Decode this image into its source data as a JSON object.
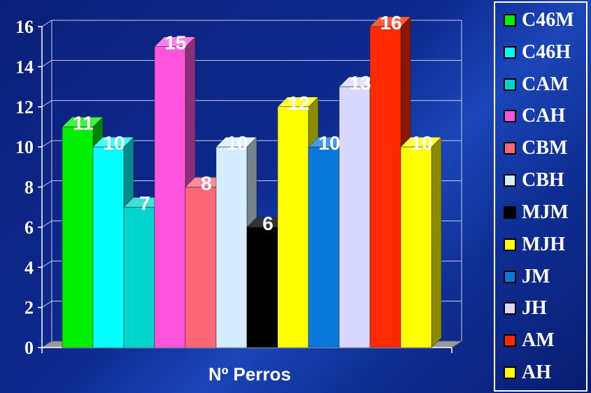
{
  "chart_data": {
    "type": "bar",
    "categories": [
      "C46M",
      "C46H",
      "CAM",
      "CAH",
      "CBM",
      "CBH",
      "MJM",
      "MJH",
      "JM",
      "JH",
      "AM",
      "AH"
    ],
    "values": [
      11,
      10,
      7,
      15,
      8,
      10,
      6,
      12,
      10,
      13,
      16,
      10
    ],
    "colors": [
      "#00ee00",
      "#00ffff",
      "#00d4cc",
      "#ff55dd",
      "#ff6677",
      "#d4eeff",
      "#000000",
      "#ffff00",
      "#0a78d8",
      "#d8d8ff",
      "#ff2a00",
      "#ffff00"
    ],
    "xlabel": "Nº Perros",
    "ylabel": "",
    "ylim": [
      0,
      16
    ],
    "yticks": [
      "0",
      "2",
      "4",
      "6",
      "8",
      "10",
      "12",
      "14",
      "16"
    ],
    "grid": true,
    "legend": "right",
    "three_d": true
  }
}
